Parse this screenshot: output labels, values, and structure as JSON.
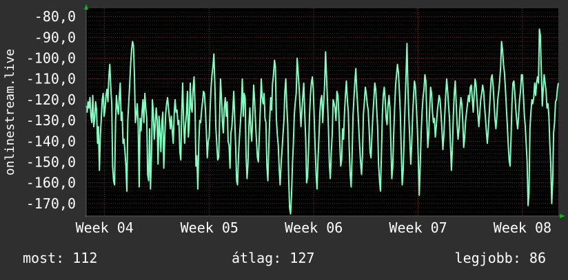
{
  "colors": {
    "background": "#2f2f2f",
    "plot_background": "#000000",
    "line": "#7fffc0",
    "text": "#ffffff",
    "grid": "#b93a3a",
    "grid_minor": "#4a4a4a",
    "axis_arrow": "#00c000"
  },
  "chart_data": {
    "type": "line",
    "title": "",
    "ylabel": "onlinestream.live",
    "xlabel": "",
    "ylim": [
      -176,
      -76
    ],
    "y_ticks": [
      "-80,0",
      "-90,0",
      "-100,0",
      "-110,0",
      "-120,0",
      "-130,0",
      "-140,0",
      "-150,0",
      "-160,0",
      "-170,0"
    ],
    "y_tick_values": [
      -80,
      -90,
      -100,
      -110,
      -120,
      -130,
      -140,
      -150,
      -160,
      -170
    ],
    "x_ticks": [
      "Week 04",
      "Week 05",
      "Week 06",
      "Week 07",
      "Week 08"
    ],
    "x_tick_positions": [
      0.039,
      0.261,
      0.482,
      0.703,
      0.924
    ],
    "grid": true,
    "series": [
      {
        "values": [
          -123,
          -126,
          -121,
          -124,
          -119,
          -128,
          -131,
          -118,
          -133,
          -129,
          -121,
          -125,
          -141,
          -133,
          -154,
          -137,
          -129,
          -120,
          -117,
          -128,
          -124,
          -118,
          -115,
          -121,
          -109,
          -103,
          -114,
          -122,
          -152,
          -159,
          -161,
          -131,
          -118,
          -124,
          -127,
          -119,
          -112,
          -130,
          -126,
          -141,
          -139,
          -145,
          -152,
          -164,
          -130,
          -121,
          -113,
          -103,
          -96,
          -92,
          -94,
          -108,
          -131,
          -127,
          -122,
          -133,
          -162,
          -129,
          -135,
          -126,
          -120,
          -131,
          -117,
          -124,
          -129,
          -156,
          -159,
          -134,
          -163,
          -147,
          -120,
          -127,
          -139,
          -132,
          -124,
          -130,
          -151,
          -128,
          -136,
          -145,
          -131,
          -126,
          -153,
          -139,
          -127,
          -122,
          -119,
          -124,
          -129,
          -134,
          -128,
          -135,
          -141,
          -127,
          -120,
          -126,
          -125,
          -132,
          -130,
          -145,
          -149,
          -126,
          -112,
          -131,
          -141,
          -132,
          -127,
          -116,
          -138,
          -131,
          -112,
          -124,
          -126,
          -115,
          -109,
          -122,
          -152,
          -147,
          -163,
          -141,
          -130,
          -131,
          -125,
          -121,
          -116,
          -117,
          -125,
          -135,
          -148,
          -140,
          -138,
          -125,
          -114,
          -108,
          -104,
          -98,
          -113,
          -133,
          -141,
          -149,
          -148,
          -129,
          -110,
          -119,
          -131,
          -136,
          -124,
          -119,
          -128,
          -121,
          -140,
          -142,
          -153,
          -136,
          -133,
          -125,
          -116,
          -129,
          -143,
          -159,
          -161,
          -147,
          -138,
          -131,
          -124,
          -110,
          -128,
          -117,
          -119,
          -147,
          -158,
          -151,
          -133,
          -124,
          -135,
          -140,
          -127,
          -113,
          -120,
          -131,
          -140,
          -148,
          -150,
          -137,
          -125,
          -110,
          -119,
          -122,
          -117,
          -129,
          -131,
          -152,
          -159,
          -143,
          -129,
          -119,
          -125,
          -112,
          -108,
          -101,
          -104,
          -129,
          -137,
          -142,
          -153,
          -161,
          -151,
          -144,
          -137,
          -130,
          -116,
          -110,
          -123,
          -132,
          -158,
          -172,
          -175,
          -166,
          -151,
          -141,
          -127,
          -121,
          -117,
          -100,
          -107,
          -114,
          -123,
          -133,
          -125,
          -118,
          -112,
          -127,
          -139,
          -160,
          -157,
          -144,
          -128,
          -118,
          -112,
          -109,
          -115,
          -129,
          -143,
          -156,
          -163,
          -149,
          -138,
          -126,
          -120,
          -118,
          -131,
          -121,
          -113,
          -97,
          -109,
          -121,
          -133,
          -151,
          -158,
          -146,
          -137,
          -120,
          -122,
          -124,
          -130,
          -116,
          -118,
          -126,
          -141,
          -152,
          -149,
          -134,
          -139,
          -126,
          -118,
          -111,
          -120,
          -126,
          -143,
          -156,
          -162,
          -148,
          -128,
          -119,
          -111,
          -105,
          -116,
          -124,
          -133,
          -142,
          -150,
          -156,
          -147,
          -127,
          -121,
          -114,
          -117,
          -122,
          -125,
          -134,
          -145,
          -148,
          -137,
          -128,
          -120,
          -112,
          -115,
          -124,
          -133,
          -151,
          -159,
          -164,
          -147,
          -127,
          -118,
          -114,
          -120,
          -129,
          -132,
          -123,
          -118,
          -124,
          -141,
          -158,
          -152,
          -137,
          -124,
          -113,
          -108,
          -103,
          -107,
          -116,
          -127,
          -145,
          -161,
          -154,
          -139,
          -123,
          -109,
          -93,
          -113,
          -128,
          -139,
          -151,
          -142,
          -128,
          -118,
          -111,
          -114,
          -124,
          -134,
          -148,
          -166,
          -152,
          -136,
          -126,
          -119,
          -115,
          -108,
          -111,
          -129,
          -143,
          -137,
          -125,
          -114,
          -117,
          -126,
          -131,
          -129,
          -138,
          -133,
          -126,
          -122,
          -118,
          -120,
          -127,
          -135,
          -144,
          -137,
          -127,
          -118,
          -110,
          -116,
          -123,
          -129,
          -142,
          -154,
          -143,
          -128,
          -117,
          -111,
          -121,
          -132,
          -139,
          -134,
          -125,
          -119,
          -122,
          -131,
          -143,
          -138,
          -130,
          -126,
          -122,
          -118,
          -121,
          -114,
          -113,
          -119,
          -126,
          -118,
          -110,
          -113,
          -120,
          -127,
          -133,
          -126,
          -120,
          -117,
          -113,
          -116,
          -123,
          -129,
          -136,
          -141,
          -134,
          -126,
          -118,
          -110,
          -108,
          -113,
          -121,
          -129,
          -134,
          -128,
          -120,
          -116,
          -111,
          -104,
          -92,
          -96,
          -103,
          -107,
          -114,
          -123,
          -132,
          -141,
          -149,
          -152,
          -138,
          -122,
          -112,
          -111,
          -117,
          -124,
          -130,
          -134,
          -128,
          -120,
          -116,
          -108,
          -108,
          -117,
          -127,
          -133,
          -141,
          -150,
          -171,
          -165,
          -134,
          -126,
          -120,
          -122,
          -119,
          -112,
          -118,
          -112,
          -109,
          -112,
          -86,
          -89,
          -106,
          -123,
          -115,
          -108,
          -112,
          -116,
          -124,
          -122,
          -128,
          -141,
          -151,
          -170,
          -159,
          -136,
          -131,
          -121,
          -120,
          -115,
          -112
        ]
      }
    ],
    "footer": {
      "current_label": "most: 112",
      "average_label": "átlag: 127",
      "best_label": "legjobb: 86"
    }
  }
}
